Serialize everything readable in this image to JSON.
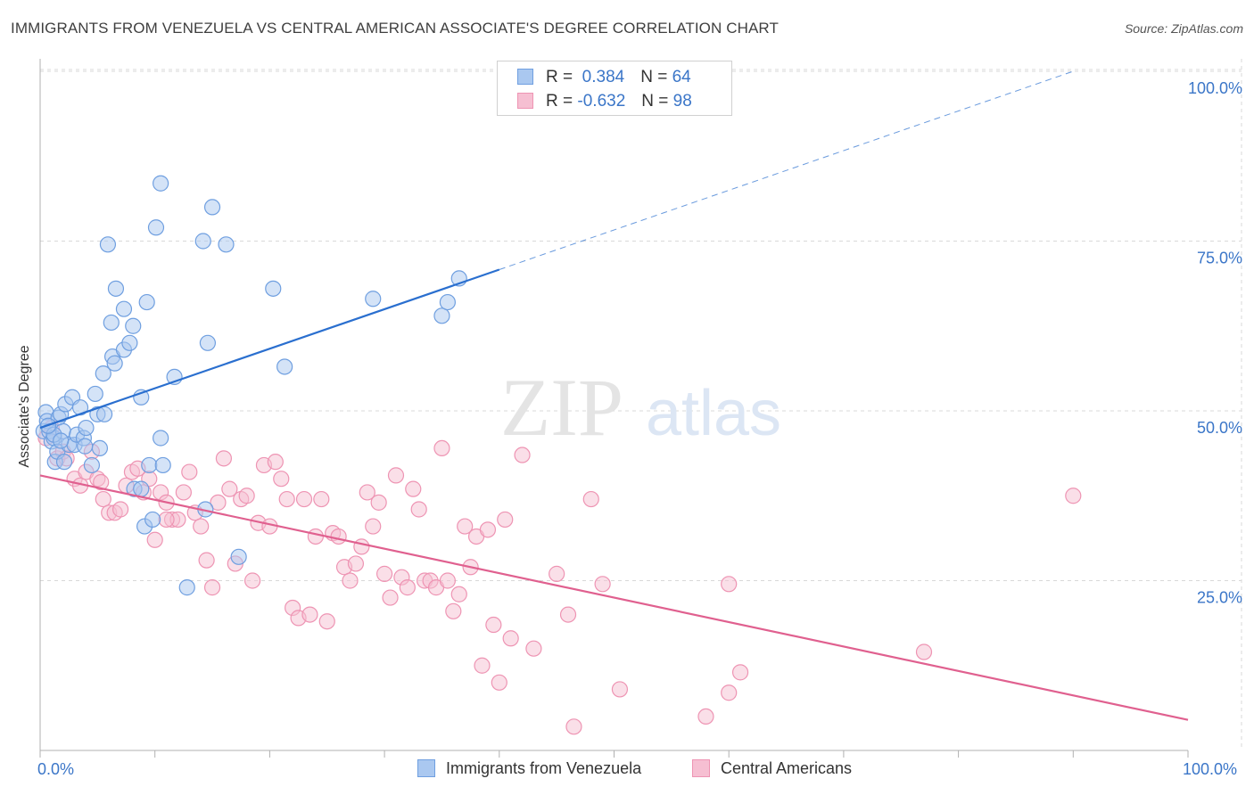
{
  "title": "IMMIGRANTS FROM VENEZUELA VS CENTRAL AMERICAN ASSOCIATE'S DEGREE CORRELATION CHART",
  "source": "Source: ZipAtlas.com",
  "watermark": {
    "zip": "ZIP",
    "atlas": "atlas"
  },
  "legend": {
    "r_label": "R =",
    "n_label": "N =",
    "series1": {
      "r": "0.384",
      "n": "64"
    },
    "series2": {
      "r": "-0.632",
      "n": "98"
    }
  },
  "colors": {
    "blue_fill": "#aac8f0",
    "blue_stroke": "#6f9fe0",
    "blue_line": "#2a6fcf",
    "pink_fill": "#f6bfd2",
    "pink_stroke": "#ee94b3",
    "pink_line": "#e0608f",
    "axis_text": "#3b76c8",
    "grid": "#d8d8d8"
  },
  "chart_data": {
    "type": "scatter",
    "title": "IMMIGRANTS FROM VENEZUELA VS CENTRAL AMERICAN ASSOCIATE'S DEGREE CORRELATION CHART",
    "xlabel": "",
    "ylabel": "Associate's Degree",
    "xlim": [
      0,
      100
    ],
    "ylim": [
      0,
      100
    ],
    "x_tick_labels": [
      "0.0%",
      "100.0%"
    ],
    "y_ticks": [
      25,
      50,
      75,
      100
    ],
    "y_tick_labels": [
      "25.0%",
      "50.0%",
      "75.0%",
      "100.0%"
    ],
    "series": [
      {
        "name": "Immigrants from Venezuela",
        "r": 0.384,
        "n": 64,
        "trend": {
          "x0": 0,
          "y0": 47.5,
          "x1": 40,
          "y1": 70.8,
          "dash_to_x": 90,
          "dash_to_y": 100
        },
        "points": [
          [
            0.3,
            47
          ],
          [
            0.5,
            49.8
          ],
          [
            0.6,
            48.5
          ],
          [
            0.8,
            47
          ],
          [
            1,
            45.5
          ],
          [
            1.2,
            46
          ],
          [
            1.3,
            42.5
          ],
          [
            1.5,
            44
          ],
          [
            1.6,
            49
          ],
          [
            1.8,
            49.5
          ],
          [
            2,
            47
          ],
          [
            2.2,
            51
          ],
          [
            2.5,
            45
          ],
          [
            2.8,
            52
          ],
          [
            3,
            45
          ],
          [
            3.2,
            46.5
          ],
          [
            3.5,
            50.5
          ],
          [
            3.8,
            46
          ],
          [
            4,
            47.5
          ],
          [
            4.5,
            42
          ],
          [
            4.8,
            52.5
          ],
          [
            5,
            49.5
          ],
          [
            5.2,
            44.5
          ],
          [
            5.6,
            49.5
          ],
          [
            5.5,
            55.5
          ],
          [
            5.9,
            74.5
          ],
          [
            6.2,
            63
          ],
          [
            6.3,
            58
          ],
          [
            6.5,
            57
          ],
          [
            6.6,
            68
          ],
          [
            7.3,
            65
          ],
          [
            7.3,
            59
          ],
          [
            7.8,
            60
          ],
          [
            8.1,
            62.5
          ],
          [
            8.2,
            38.5
          ],
          [
            8.8,
            38.5
          ],
          [
            8.8,
            52
          ],
          [
            9.1,
            33
          ],
          [
            9.3,
            66
          ],
          [
            9.5,
            42
          ],
          [
            9.8,
            34
          ],
          [
            10.1,
            77
          ],
          [
            10.5,
            83.5
          ],
          [
            10.5,
            46
          ],
          [
            10.7,
            42
          ],
          [
            11.7,
            55
          ],
          [
            12.8,
            24
          ],
          [
            14.2,
            75
          ],
          [
            14.4,
            35.5
          ],
          [
            14.6,
            60
          ],
          [
            15,
            80
          ],
          [
            16.2,
            74.5
          ],
          [
            17.3,
            28.5
          ],
          [
            20.3,
            68
          ],
          [
            21.3,
            56.5
          ],
          [
            29,
            66.5
          ],
          [
            35,
            64
          ],
          [
            35.5,
            66
          ],
          [
            36.5,
            69.5
          ],
          [
            1.2,
            46.5
          ],
          [
            2.1,
            42.5
          ],
          [
            3.9,
            44.8
          ],
          [
            1.8,
            45.6
          ],
          [
            0.7,
            47.8
          ]
        ]
      },
      {
        "name": "Central Americans",
        "r": -0.632,
        "n": 98,
        "trend": {
          "x0": 0,
          "y0": 40.5,
          "x1": 100,
          "y1": 4.5
        },
        "points": [
          [
            0.5,
            46
          ],
          [
            1,
            47.5
          ],
          [
            1.5,
            43
          ],
          [
            2,
            44
          ],
          [
            2.3,
            43
          ],
          [
            3,
            40
          ],
          [
            3.5,
            39
          ],
          [
            4,
            41
          ],
          [
            4.5,
            44
          ],
          [
            5,
            40
          ],
          [
            5.3,
            39.5
          ],
          [
            5.5,
            37
          ],
          [
            6,
            35
          ],
          [
            6.5,
            35
          ],
          [
            7,
            35.5
          ],
          [
            7.5,
            39
          ],
          [
            8,
            41
          ],
          [
            8.5,
            41.5
          ],
          [
            9,
            38
          ],
          [
            9.5,
            40
          ],
          [
            10,
            31
          ],
          [
            10.5,
            38
          ],
          [
            11,
            36.5
          ],
          [
            11.5,
            34
          ],
          [
            12,
            34
          ],
          [
            12.5,
            38
          ],
          [
            13,
            41
          ],
          [
            13.5,
            35
          ],
          [
            14,
            33
          ],
          [
            14.5,
            28
          ],
          [
            15,
            24
          ],
          [
            15.5,
            36.5
          ],
          [
            16,
            43
          ],
          [
            16.5,
            38.5
          ],
          [
            17,
            27.5
          ],
          [
            17.5,
            37
          ],
          [
            18,
            37.5
          ],
          [
            18.5,
            25
          ],
          [
            19,
            33.5
          ],
          [
            19.5,
            42
          ],
          [
            20,
            33
          ],
          [
            20.5,
            42.5
          ],
          [
            21,
            40
          ],
          [
            21.5,
            37
          ],
          [
            22,
            21
          ],
          [
            22.5,
            19.5
          ],
          [
            23,
            37
          ],
          [
            23.5,
            20
          ],
          [
            24,
            31.5
          ],
          [
            24.5,
            37
          ],
          [
            25,
            19
          ],
          [
            25.5,
            32
          ],
          [
            26,
            31.5
          ],
          [
            26.5,
            27
          ],
          [
            27,
            25
          ],
          [
            27.5,
            27.5
          ],
          [
            28,
            30
          ],
          [
            28.5,
            38
          ],
          [
            29,
            33
          ],
          [
            29.5,
            36.5
          ],
          [
            30,
            26
          ],
          [
            30.5,
            22.5
          ],
          [
            31,
            40.5
          ],
          [
            31.5,
            25.5
          ],
          [
            32,
            24
          ],
          [
            32.5,
            38.5
          ],
          [
            33,
            35.5
          ],
          [
            33.5,
            25
          ],
          [
            34,
            25
          ],
          [
            34.5,
            24
          ],
          [
            35,
            44.5
          ],
          [
            35.5,
            25
          ],
          [
            36,
            20.5
          ],
          [
            36.5,
            23
          ],
          [
            37,
            33
          ],
          [
            37.5,
            27
          ],
          [
            38,
            31.5
          ],
          [
            38.5,
            12.5
          ],
          [
            39,
            32.5
          ],
          [
            39.5,
            18.5
          ],
          [
            40,
            10
          ],
          [
            40.5,
            34
          ],
          [
            41,
            16.5
          ],
          [
            42,
            43.5
          ],
          [
            43,
            15
          ],
          [
            45,
            26
          ],
          [
            46.5,
            3.5
          ],
          [
            46,
            20
          ],
          [
            48,
            37
          ],
          [
            49,
            24.5
          ],
          [
            50.5,
            9
          ],
          [
            58,
            5
          ],
          [
            60,
            8.5
          ],
          [
            60,
            24.5
          ],
          [
            61,
            11.5
          ],
          [
            77,
            14.5
          ],
          [
            90,
            37.5
          ],
          [
            11,
            34
          ]
        ]
      }
    ]
  },
  "bottom_legend": {
    "series1": "Immigrants from Venezuela",
    "series2": "Central Americans"
  }
}
